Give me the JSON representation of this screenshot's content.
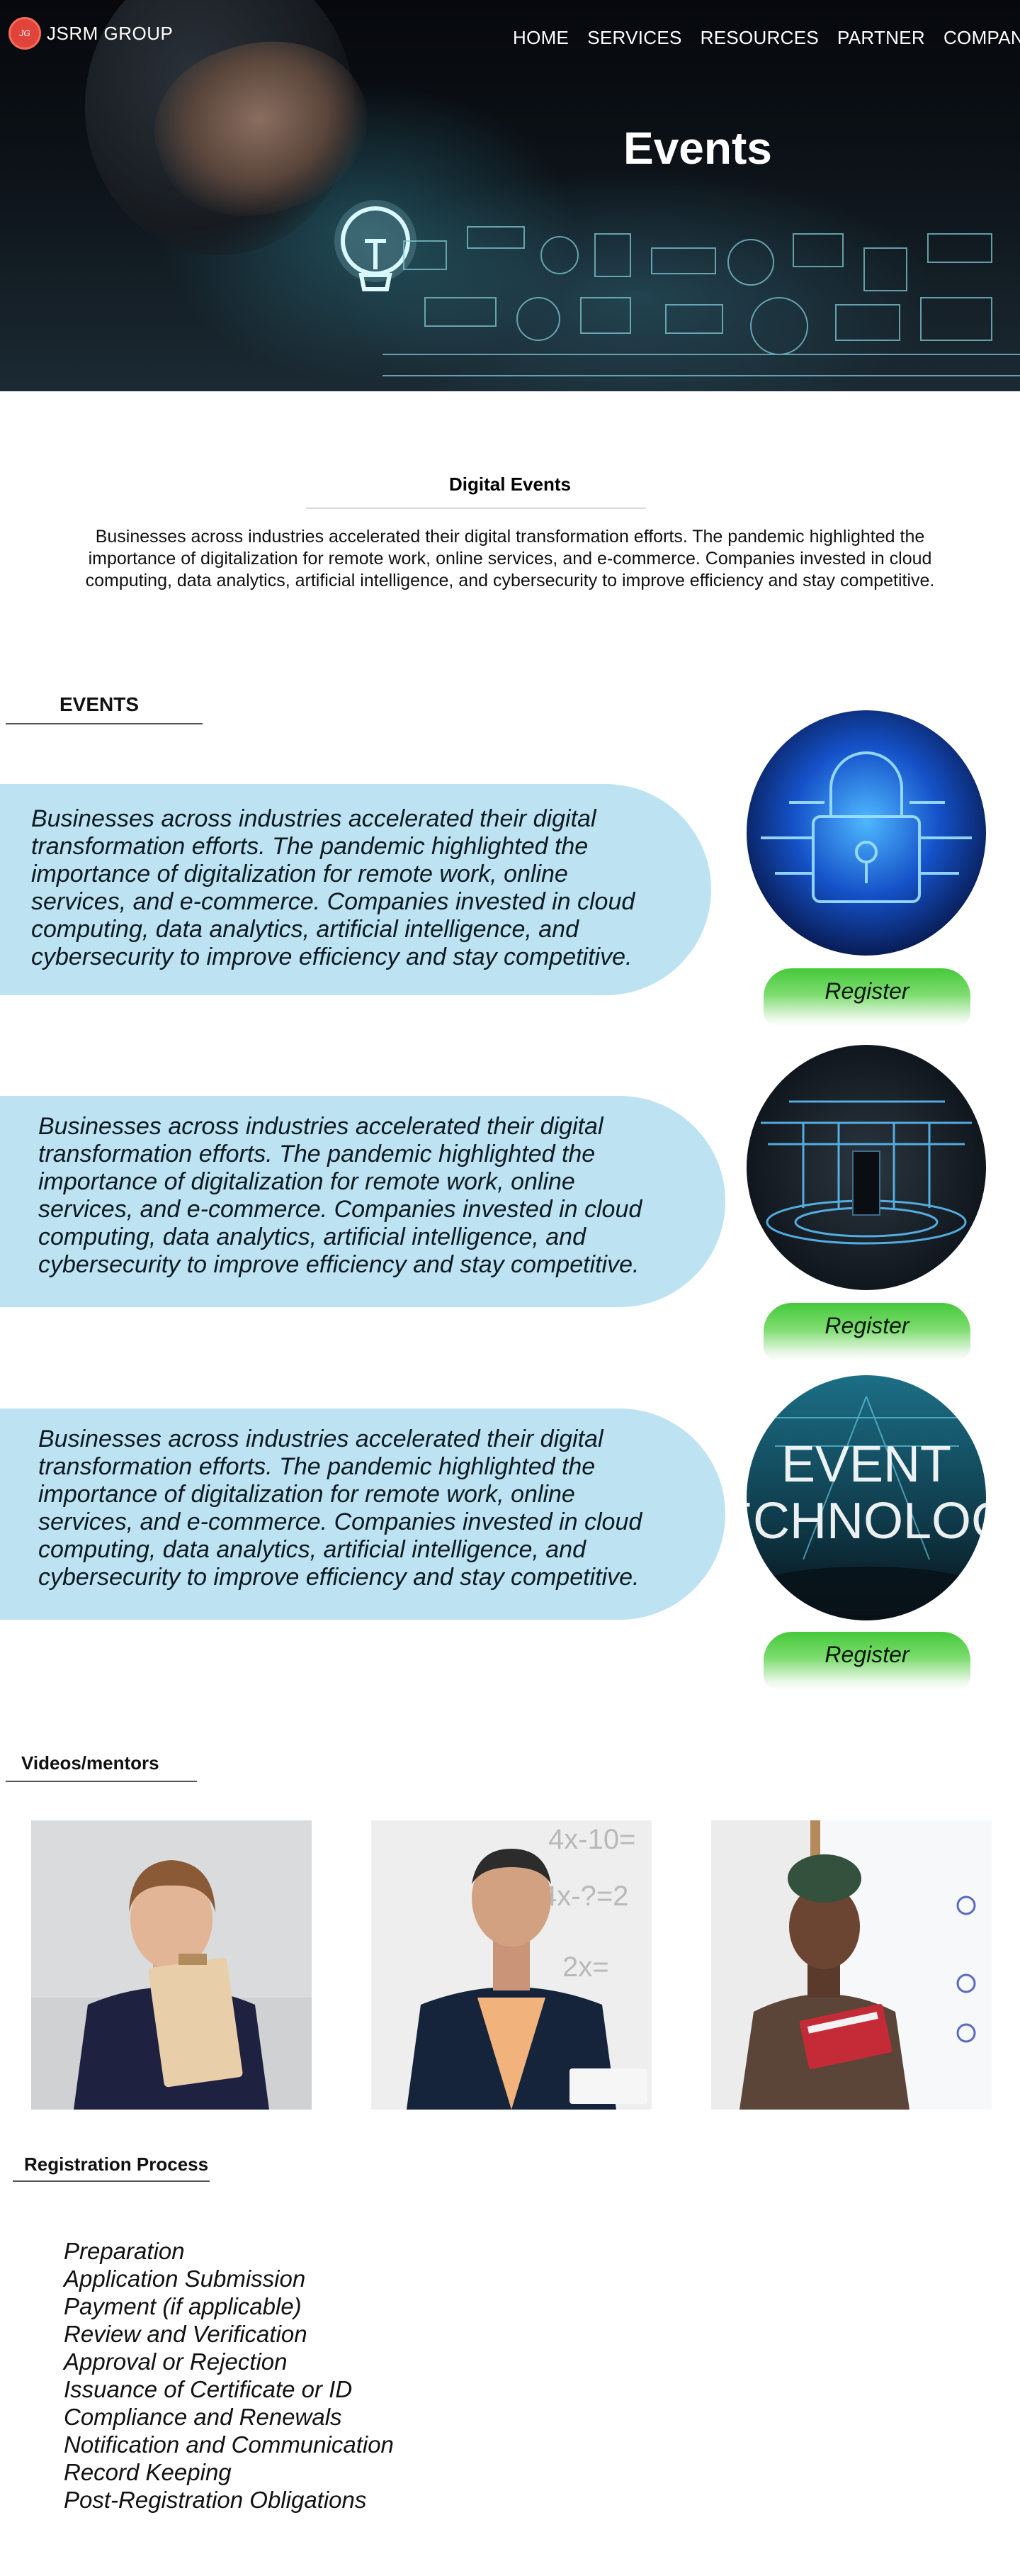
{
  "header": {
    "logo_mark": "JG",
    "logo_text": "JSRM GROUP",
    "nav": [
      "HOME",
      "SERVICES",
      "RESOURCES",
      "PARTNER",
      "COMPANY"
    ]
  },
  "hero": {
    "title": "Events"
  },
  "digital_events": {
    "title": "Digital Events",
    "text": "Businesses across industries accelerated their digital transformation efforts. The pandemic highlighted the importance of digitalization for remote work, online services, and e-commerce. Companies invested in cloud computing, data analytics, artificial intelligence, and cybersecurity to improve efficiency and stay competitive."
  },
  "events": {
    "heading": "EVENTS",
    "items": [
      {
        "text": "Businesses across industries accelerated their digital\ntransformation efforts. The pandemic highlighted the\nimportance of digitalization for remote work, online\nservices, and e-commerce. Companies invested in cloud\ncomputing, data analytics, artificial intelligence, and\ncybersecurity to improve efficiency and stay competitive.",
        "image": "cyber-lock",
        "register_label": "Register"
      },
      {
        "text": "Businesses across industries accelerated their digital\ntransformation efforts. The pandemic highlighted the\nimportance of digitalization for remote work, online\nservices, and e-commerce. Companies invested in cloud\ncomputing, data analytics, artificial intelligence, and\ncybersecurity to improve efficiency and stay competitive.",
        "image": "data-center",
        "register_label": "Register"
      },
      {
        "text": "Businesses across industries accelerated their digital\ntransformation efforts. The pandemic highlighted the\nimportance of digitalization for remote work, online\nservices, and e-commerce. Companies invested in cloud\ncomputing, data analytics, artificial intelligence, and\ncybersecurity to improve efficiency and stay competitive.",
        "image": "event-technology",
        "image_text": [
          "EVENT",
          "TECHNOLOGY"
        ],
        "register_label": "Register"
      }
    ]
  },
  "videos": {
    "heading": "Videos/mentors",
    "mentors": [
      "mentor-woman-clipboard",
      "mentor-man-whiteboard",
      "mentor-woman-books"
    ]
  },
  "registration": {
    "heading": "Registration Process",
    "steps": [
      "Preparation",
      "Application Submission",
      "Payment (if applicable)",
      "Review and Verification",
      "Approval or Rejection",
      "Issuance of Certificate or ID",
      "Compliance and Renewals",
      "Notification and Communication",
      "Record Keeping",
      "Post-Registration Obligations"
    ]
  },
  "colors": {
    "pill": "#bde3f2",
    "register": "#45c93a",
    "logo": "#e0433a"
  }
}
